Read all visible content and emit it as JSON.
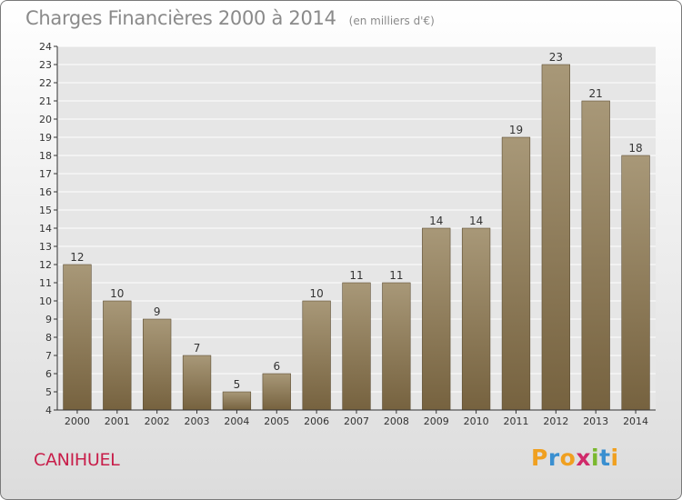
{
  "chart_data": {
    "type": "bar",
    "title": "Charges Financières 2000 à 2014",
    "subtitle": "(en milliers d'€)",
    "categories": [
      "2000",
      "2001",
      "2002",
      "2003",
      "2004",
      "2005",
      "2006",
      "2007",
      "2008",
      "2009",
      "2010",
      "2011",
      "2012",
      "2013",
      "2014"
    ],
    "values": [
      12,
      10,
      9,
      7,
      5,
      6,
      10,
      11,
      11,
      14,
      14,
      19,
      23,
      21,
      18
    ],
    "ylim": [
      4,
      24
    ],
    "yticks": [
      4,
      5,
      6,
      7,
      8,
      9,
      10,
      11,
      12,
      13,
      14,
      15,
      16,
      17,
      18,
      19,
      20,
      21,
      22,
      23,
      24
    ],
    "grid": true,
    "data_labels": true,
    "colors": {
      "bar_top": "#a89878",
      "bar_bottom": "#76623f",
      "axis": "#333333",
      "grid": "#ffffff"
    }
  },
  "footer": {
    "commune": "CANIHUEL",
    "logo_letters": [
      {
        "ch": "P",
        "color": "#f0a020"
      },
      {
        "ch": "r",
        "color": "#3a8fd0"
      },
      {
        "ch": "o",
        "color": "#f0a020"
      },
      {
        "ch": "x",
        "color": "#d02a6a"
      },
      {
        "ch": "i",
        "color": "#7ab82e"
      },
      {
        "ch": "t",
        "color": "#3a8fd0"
      },
      {
        "ch": "i",
        "color": "#f0a020"
      }
    ]
  }
}
